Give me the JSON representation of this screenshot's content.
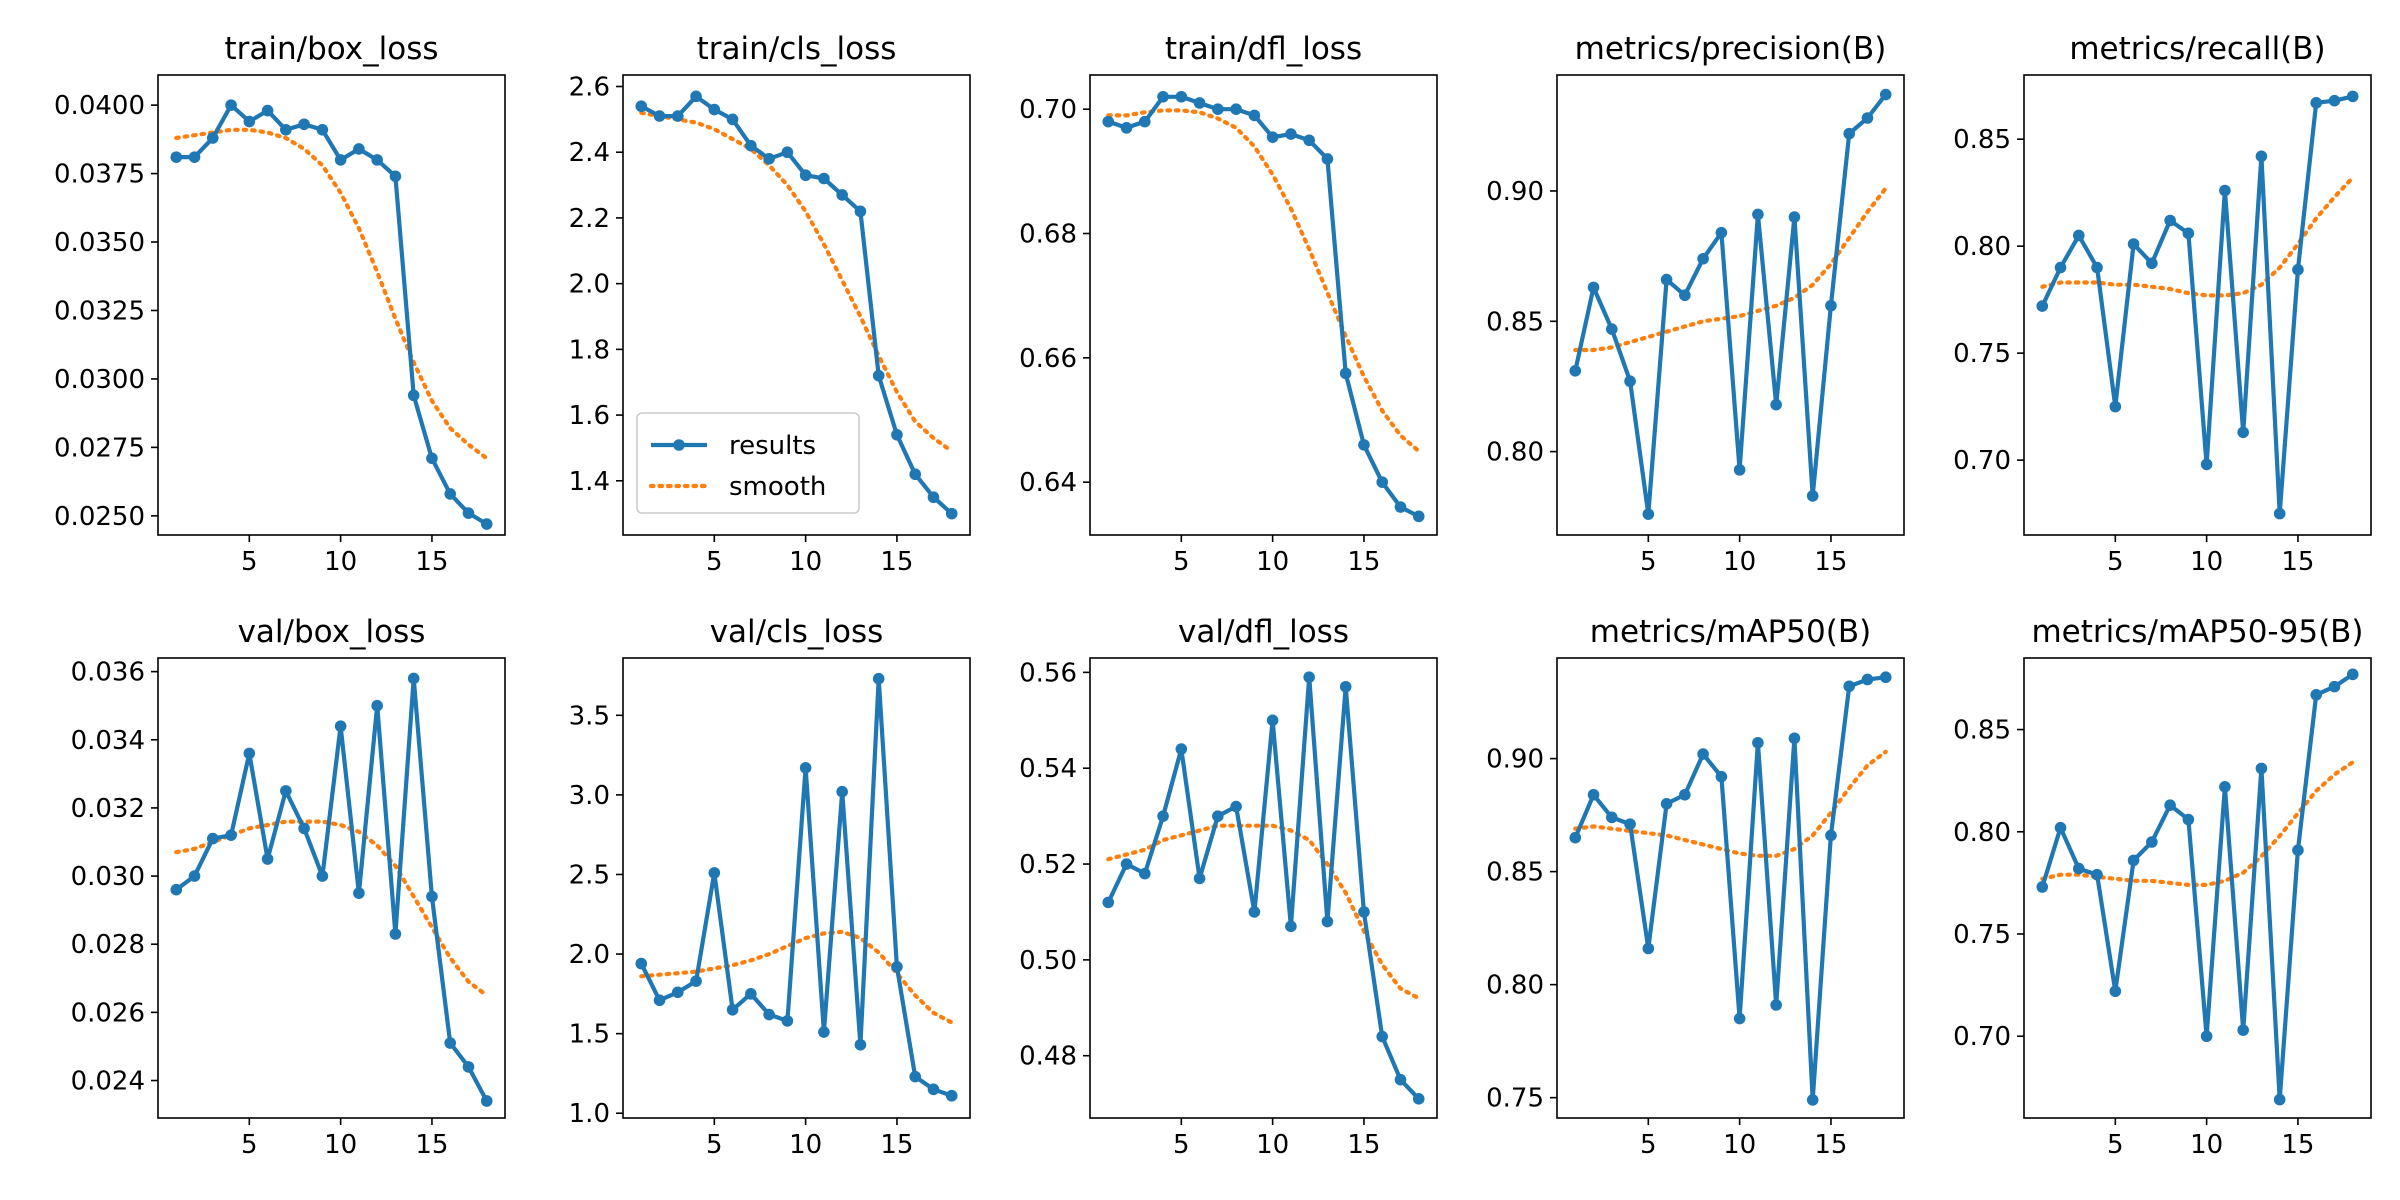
{
  "figure": {
    "legend": {
      "results_label": "results",
      "smooth_label": "smooth",
      "placement": "lower left",
      "panel_index": 1
    }
  },
  "colors": {
    "results": "#1f77b4",
    "smooth": "#ff7f0e",
    "axes": "#000000",
    "background": "#ffffff"
  },
  "chart_data": [
    {
      "type": "line",
      "title": "train/box_loss",
      "xlabel": "",
      "ylabel": "",
      "xlim": [
        0,
        19
      ],
      "ylim": [
        0.0243,
        0.0411
      ],
      "xticks": [
        5,
        10,
        15
      ],
      "xtick_labels": [
        "5",
        "10",
        "15"
      ],
      "yticks": [
        0.025,
        0.0275,
        0.03,
        0.0325,
        0.035,
        0.0375,
        0.04
      ],
      "ytick_labels": [
        "0.0250",
        "0.0275",
        "0.0300",
        "0.0325",
        "0.0350",
        "0.0375",
        "0.0400"
      ],
      "x": [
        1,
        2,
        3,
        4,
        5,
        6,
        7,
        8,
        9,
        10,
        11,
        12,
        13,
        14,
        15,
        16,
        17,
        18
      ],
      "series": [
        {
          "name": "results",
          "values": [
            0.0381,
            0.0381,
            0.0388,
            0.04,
            0.0394,
            0.0398,
            0.0391,
            0.0393,
            0.0391,
            0.038,
            0.0384,
            0.038,
            0.0374,
            0.0294,
            0.0271,
            0.0258,
            0.0251,
            0.0247
          ]
        },
        {
          "name": "smooth",
          "values": [
            0.0388,
            0.0389,
            0.039,
            0.0391,
            0.0391,
            0.039,
            0.0388,
            0.0384,
            0.0378,
            0.0368,
            0.0355,
            0.0339,
            0.0322,
            0.0306,
            0.0292,
            0.0282,
            0.0276,
            0.0271
          ]
        }
      ]
    },
    {
      "type": "line",
      "title": "train/cls_loss",
      "xlabel": "",
      "ylabel": "",
      "xlim": [
        0,
        19
      ],
      "ylim": [
        1.235,
        2.635
      ],
      "xticks": [
        5,
        10,
        15
      ],
      "xtick_labels": [
        "5",
        "10",
        "15"
      ],
      "yticks": [
        1.4,
        1.6,
        1.8,
        2.0,
        2.2,
        2.4,
        2.6
      ],
      "ytick_labels": [
        "1.4",
        "1.6",
        "1.8",
        "2.0",
        "2.2",
        "2.4",
        "2.6"
      ],
      "x": [
        1,
        2,
        3,
        4,
        5,
        6,
        7,
        8,
        9,
        10,
        11,
        12,
        13,
        14,
        15,
        16,
        17,
        18
      ],
      "series": [
        {
          "name": "results",
          "values": [
            2.54,
            2.51,
            2.51,
            2.57,
            2.53,
            2.5,
            2.42,
            2.38,
            2.4,
            2.33,
            2.32,
            2.27,
            2.22,
            1.72,
            1.54,
            1.42,
            1.35,
            1.3
          ]
        },
        {
          "name": "smooth",
          "values": [
            2.52,
            2.51,
            2.5,
            2.49,
            2.47,
            2.44,
            2.41,
            2.36,
            2.3,
            2.22,
            2.12,
            2.01,
            1.9,
            1.78,
            1.67,
            1.58,
            1.53,
            1.49
          ]
        }
      ]
    },
    {
      "type": "line",
      "title": "train/dfl_loss",
      "xlabel": "",
      "ylabel": "",
      "xlim": [
        0,
        19
      ],
      "ylim": [
        0.6315,
        0.7055
      ],
      "xticks": [
        5,
        10,
        15
      ],
      "xtick_labels": [
        "5",
        "10",
        "15"
      ],
      "yticks": [
        0.64,
        0.66,
        0.68,
        0.7
      ],
      "ytick_labels": [
        "0.64",
        "0.66",
        "0.68",
        "0.70"
      ],
      "x": [
        1,
        2,
        3,
        4,
        5,
        6,
        7,
        8,
        9,
        10,
        11,
        12,
        13,
        14,
        15,
        16,
        17,
        18
      ],
      "series": [
        {
          "name": "results",
          "values": [
            0.698,
            0.697,
            0.698,
            0.702,
            0.702,
            0.701,
            0.7,
            0.7,
            0.699,
            0.6955,
            0.696,
            0.695,
            0.692,
            0.6575,
            0.646,
            0.64,
            0.636,
            0.6345
          ]
        },
        {
          "name": "smooth",
          "values": [
            0.699,
            0.699,
            0.6995,
            0.6998,
            0.6998,
            0.6995,
            0.6985,
            0.697,
            0.694,
            0.6895,
            0.684,
            0.6775,
            0.6705,
            0.6635,
            0.657,
            0.6515,
            0.6475,
            0.645
          ]
        }
      ]
    },
    {
      "type": "line",
      "title": "metrics/precision(B)",
      "xlabel": "",
      "ylabel": "",
      "xlim": [
        0,
        19
      ],
      "ylim": [
        0.768,
        0.9445
      ],
      "xticks": [
        5,
        10,
        15
      ],
      "xtick_labels": [
        "5",
        "10",
        "15"
      ],
      "yticks": [
        0.8,
        0.85,
        0.9
      ],
      "ytick_labels": [
        "0.80",
        "0.85",
        "0.90"
      ],
      "x": [
        1,
        2,
        3,
        4,
        5,
        6,
        7,
        8,
        9,
        10,
        11,
        12,
        13,
        14,
        15,
        16,
        17,
        18
      ],
      "series": [
        {
          "name": "results",
          "values": [
            0.831,
            0.863,
            0.847,
            0.827,
            0.776,
            0.866,
            0.86,
            0.874,
            0.884,
            0.793,
            0.891,
            0.818,
            0.89,
            0.783,
            0.856,
            0.922,
            0.928,
            0.937
          ]
        },
        {
          "name": "smooth",
          "values": [
            0.839,
            0.839,
            0.84,
            0.842,
            0.844,
            0.846,
            0.848,
            0.85,
            0.851,
            0.852,
            0.854,
            0.856,
            0.859,
            0.864,
            0.872,
            0.882,
            0.892,
            0.901
          ]
        }
      ]
    },
    {
      "type": "line",
      "title": "metrics/recall(B)",
      "xlabel": "",
      "ylabel": "",
      "xlim": [
        0,
        19
      ],
      "ylim": [
        0.665,
        0.88
      ],
      "xticks": [
        5,
        10,
        15
      ],
      "xtick_labels": [
        "5",
        "10",
        "15"
      ],
      "yticks": [
        0.7,
        0.75,
        0.8,
        0.85
      ],
      "ytick_labels": [
        "0.70",
        "0.75",
        "0.80",
        "0.85"
      ],
      "x": [
        1,
        2,
        3,
        4,
        5,
        6,
        7,
        8,
        9,
        10,
        11,
        12,
        13,
        14,
        15,
        16,
        17,
        18
      ],
      "series": [
        {
          "name": "results",
          "values": [
            0.772,
            0.79,
            0.805,
            0.79,
            0.725,
            0.801,
            0.792,
            0.812,
            0.806,
            0.698,
            0.826,
            0.713,
            0.842,
            0.675,
            0.789,
            0.867,
            0.868,
            0.87
          ]
        },
        {
          "name": "smooth",
          "values": [
            0.781,
            0.783,
            0.783,
            0.783,
            0.782,
            0.782,
            0.781,
            0.78,
            0.778,
            0.777,
            0.777,
            0.778,
            0.782,
            0.79,
            0.801,
            0.813,
            0.823,
            0.832
          ]
        }
      ]
    },
    {
      "type": "line",
      "title": "val/box_loss",
      "xlabel": "",
      "ylabel": "",
      "xlim": [
        0,
        19
      ],
      "ylim": [
        0.0229,
        0.0364
      ],
      "xticks": [
        5,
        10,
        15
      ],
      "xtick_labels": [
        "5",
        "10",
        "15"
      ],
      "yticks": [
        0.024,
        0.026,
        0.028,
        0.03,
        0.032,
        0.034,
        0.036
      ],
      "ytick_labels": [
        "0.024",
        "0.026",
        "0.028",
        "0.030",
        "0.032",
        "0.034",
        "0.036"
      ],
      "x": [
        1,
        2,
        3,
        4,
        5,
        6,
        7,
        8,
        9,
        10,
        11,
        12,
        13,
        14,
        15,
        16,
        17,
        18
      ],
      "series": [
        {
          "name": "results",
          "values": [
            0.0296,
            0.03,
            0.0311,
            0.0312,
            0.0336,
            0.0305,
            0.0325,
            0.0314,
            0.03,
            0.0344,
            0.0295,
            0.035,
            0.0283,
            0.0358,
            0.0294,
            0.0251,
            0.0244,
            0.0234
          ]
        },
        {
          "name": "smooth",
          "values": [
            0.0307,
            0.0308,
            0.031,
            0.0312,
            0.0314,
            0.0315,
            0.0316,
            0.0316,
            0.0316,
            0.0315,
            0.0313,
            0.0309,
            0.0303,
            0.0294,
            0.0285,
            0.0276,
            0.0269,
            0.0265
          ]
        }
      ]
    },
    {
      "type": "line",
      "title": "val/cls_loss",
      "xlabel": "",
      "ylabel": "",
      "xlim": [
        0,
        19
      ],
      "ylim": [
        0.97,
        3.86
      ],
      "xticks": [
        5,
        10,
        15
      ],
      "xtick_labels": [
        "5",
        "10",
        "15"
      ],
      "yticks": [
        1.0,
        1.5,
        2.0,
        2.5,
        3.0,
        3.5
      ],
      "ytick_labels": [
        "1.0",
        "1.5",
        "2.0",
        "2.5",
        "3.0",
        "3.5"
      ],
      "x": [
        1,
        2,
        3,
        4,
        5,
        6,
        7,
        8,
        9,
        10,
        11,
        12,
        13,
        14,
        15,
        16,
        17,
        18
      ],
      "series": [
        {
          "name": "results",
          "values": [
            1.94,
            1.71,
            1.76,
            1.83,
            2.51,
            1.65,
            1.75,
            1.62,
            1.58,
            3.17,
            1.51,
            3.02,
            1.43,
            3.73,
            1.92,
            1.23,
            1.15,
            1.11
          ]
        },
        {
          "name": "smooth",
          "values": [
            1.86,
            1.87,
            1.88,
            1.89,
            1.91,
            1.93,
            1.96,
            2.0,
            2.05,
            2.1,
            2.13,
            2.14,
            2.1,
            2.01,
            1.88,
            1.74,
            1.63,
            1.57
          ]
        }
      ]
    },
    {
      "type": "line",
      "title": "val/dfl_loss",
      "xlabel": "",
      "ylabel": "",
      "xlim": [
        0,
        19
      ],
      "ylim": [
        0.467,
        0.563
      ],
      "xticks": [
        5,
        10,
        15
      ],
      "xtick_labels": [
        "5",
        "10",
        "15"
      ],
      "yticks": [
        0.48,
        0.5,
        0.52,
        0.54,
        0.56
      ],
      "ytick_labels": [
        "0.48",
        "0.50",
        "0.52",
        "0.54",
        "0.56"
      ],
      "x": [
        1,
        2,
        3,
        4,
        5,
        6,
        7,
        8,
        9,
        10,
        11,
        12,
        13,
        14,
        15,
        16,
        17,
        18
      ],
      "series": [
        {
          "name": "results",
          "values": [
            0.512,
            0.52,
            0.518,
            0.53,
            0.544,
            0.517,
            0.53,
            0.532,
            0.51,
            0.55,
            0.507,
            0.559,
            0.508,
            0.557,
            0.51,
            0.484,
            0.475,
            0.471
          ]
        },
        {
          "name": "smooth",
          "values": [
            0.521,
            0.522,
            0.523,
            0.525,
            0.526,
            0.527,
            0.528,
            0.528,
            0.528,
            0.528,
            0.527,
            0.525,
            0.52,
            0.514,
            0.506,
            0.499,
            0.494,
            0.492
          ]
        }
      ]
    },
    {
      "type": "line",
      "title": "metrics/mAP50(B)",
      "xlabel": "",
      "ylabel": "",
      "xlim": [
        0,
        19
      ],
      "ylim": [
        0.741,
        0.9445
      ],
      "xticks": [
        5,
        10,
        15
      ],
      "xtick_labels": [
        "5",
        "10",
        "15"
      ],
      "yticks": [
        0.75,
        0.8,
        0.85,
        0.9
      ],
      "ytick_labels": [
        "0.75",
        "0.80",
        "0.85",
        "0.90"
      ],
      "x": [
        1,
        2,
        3,
        4,
        5,
        6,
        7,
        8,
        9,
        10,
        11,
        12,
        13,
        14,
        15,
        16,
        17,
        18
      ],
      "series": [
        {
          "name": "results",
          "values": [
            0.865,
            0.884,
            0.874,
            0.871,
            0.816,
            0.88,
            0.884,
            0.902,
            0.892,
            0.785,
            0.907,
            0.791,
            0.909,
            0.749,
            0.866,
            0.932,
            0.935,
            0.936
          ]
        },
        {
          "name": "smooth",
          "values": [
            0.869,
            0.87,
            0.869,
            0.868,
            0.867,
            0.866,
            0.864,
            0.862,
            0.86,
            0.858,
            0.857,
            0.857,
            0.86,
            0.866,
            0.876,
            0.887,
            0.897,
            0.903
          ]
        }
      ]
    },
    {
      "type": "line",
      "title": "metrics/mAP50-95(B)",
      "xlabel": "",
      "ylabel": "",
      "xlim": [
        0,
        19
      ],
      "ylim": [
        0.66,
        0.885
      ],
      "xticks": [
        5,
        10,
        15
      ],
      "xtick_labels": [
        "5",
        "10",
        "15"
      ],
      "yticks": [
        0.7,
        0.75,
        0.8,
        0.85
      ],
      "ytick_labels": [
        "0.70",
        "0.75",
        "0.80",
        "0.85"
      ],
      "x": [
        1,
        2,
        3,
        4,
        5,
        6,
        7,
        8,
        9,
        10,
        11,
        12,
        13,
        14,
        15,
        16,
        17,
        18
      ],
      "series": [
        {
          "name": "results",
          "values": [
            0.773,
            0.802,
            0.782,
            0.779,
            0.722,
            0.786,
            0.795,
            0.813,
            0.806,
            0.7,
            0.822,
            0.703,
            0.831,
            0.669,
            0.791,
            0.867,
            0.871,
            0.877
          ]
        },
        {
          "name": "smooth",
          "values": [
            0.777,
            0.779,
            0.779,
            0.778,
            0.777,
            0.776,
            0.776,
            0.775,
            0.774,
            0.774,
            0.776,
            0.78,
            0.788,
            0.798,
            0.809,
            0.82,
            0.828,
            0.834
          ]
        }
      ]
    }
  ]
}
